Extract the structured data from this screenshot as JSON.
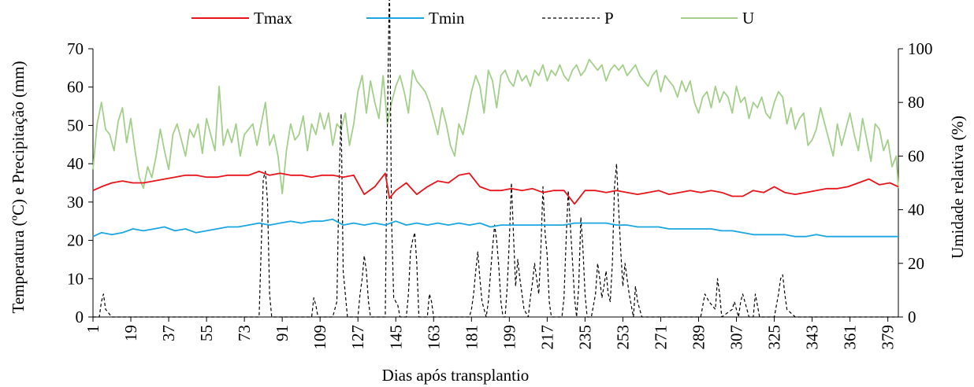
{
  "chart_data": {
    "type": "line",
    "xlabel": "Dias após transplantio",
    "ylabel_left": "Temperatura (ºC) e Precipitação (mm)",
    "ylabel_right": "Umidade relativa (%)",
    "x_tick_labels": [
      "1",
      "19",
      "37",
      "55",
      "73",
      "91",
      "109",
      "127",
      "145",
      "163",
      "181",
      "199",
      "217",
      "235",
      "253",
      "271",
      "289",
      "307",
      "325",
      "343",
      "361",
      "379"
    ],
    "y_left_ticks": [
      "0",
      "10",
      "20",
      "30",
      "40",
      "50",
      "60",
      "70"
    ],
    "y_right_ticks": [
      "0",
      "20",
      "40",
      "60",
      "80",
      "100"
    ],
    "ylim_left": [
      0,
      70
    ],
    "ylim_right": [
      0,
      100
    ],
    "xlim": [
      1,
      384
    ],
    "legend_position": "top",
    "series": [
      {
        "name": "Tmax",
        "axis": "left",
        "color": "#e8141b",
        "dash": "solid",
        "x": [
          1,
          5,
          10,
          15,
          20,
          25,
          30,
          35,
          40,
          45,
          50,
          55,
          60,
          65,
          70,
          75,
          80,
          85,
          90,
          95,
          100,
          105,
          110,
          115,
          120,
          125,
          130,
          135,
          140,
          142,
          145,
          150,
          155,
          160,
          165,
          170,
          175,
          180,
          185,
          190,
          195,
          200,
          205,
          210,
          215,
          220,
          225,
          230,
          235,
          240,
          245,
          250,
          255,
          260,
          265,
          270,
          275,
          280,
          285,
          290,
          295,
          300,
          305,
          310,
          315,
          320,
          325,
          330,
          335,
          340,
          345,
          350,
          355,
          360,
          365,
          370,
          375,
          380,
          384
        ],
        "values": [
          33,
          34,
          35,
          35.5,
          35,
          35,
          35.5,
          36,
          36.5,
          37,
          37,
          36.5,
          36.5,
          37,
          37,
          37,
          38,
          37,
          37.5,
          37,
          37,
          36.5,
          37,
          37,
          36.5,
          37,
          32,
          34,
          37.5,
          31,
          33,
          35,
          32,
          34,
          35.5,
          35,
          37,
          37.5,
          34,
          33,
          33,
          33.5,
          33,
          33.5,
          32.5,
          33,
          33,
          29.5,
          33,
          33,
          32.5,
          33,
          32.5,
          32,
          32.5,
          33,
          32,
          32.5,
          33,
          32.5,
          33,
          32.5,
          31.5,
          31.5,
          33,
          32.5,
          34,
          32.5,
          32,
          32.5,
          33,
          33.5,
          33.5,
          34,
          35,
          36,
          34.5,
          35,
          34
        ]
      },
      {
        "name": "Tmin",
        "axis": "left",
        "color": "#1aa6e0",
        "dash": "solid",
        "x": [
          1,
          5,
          10,
          15,
          20,
          25,
          30,
          35,
          40,
          45,
          50,
          55,
          60,
          65,
          70,
          75,
          80,
          85,
          90,
          95,
          100,
          105,
          110,
          115,
          120,
          125,
          130,
          135,
          140,
          145,
          150,
          155,
          160,
          165,
          170,
          175,
          180,
          185,
          190,
          195,
          200,
          205,
          210,
          215,
          220,
          225,
          230,
          235,
          240,
          245,
          250,
          255,
          260,
          265,
          270,
          275,
          280,
          285,
          290,
          295,
          300,
          305,
          310,
          315,
          320,
          325,
          330,
          335,
          340,
          345,
          350,
          355,
          360,
          365,
          370,
          375,
          380,
          384
        ],
        "values": [
          21,
          22,
          21.5,
          22,
          23,
          22.5,
          23,
          23.5,
          22.5,
          23,
          22,
          22.5,
          23,
          23.5,
          23.5,
          24,
          24.5,
          24,
          24.5,
          25,
          24.5,
          25,
          25,
          25.5,
          24,
          24.5,
          24,
          24.5,
          24,
          25,
          24,
          24.5,
          24,
          24.5,
          24,
          24.5,
          24,
          24.5,
          23.5,
          24,
          24,
          24,
          24,
          24,
          24,
          24,
          24.5,
          24.5,
          24.5,
          24.5,
          24,
          24,
          23.5,
          23.5,
          23.5,
          23,
          23,
          23,
          23,
          23,
          22.5,
          22.5,
          22,
          21.5,
          21.5,
          21.5,
          21.5,
          21,
          21,
          21.5,
          21,
          21,
          21,
          21,
          21,
          21,
          21,
          21
        ]
      },
      {
        "name": "P",
        "axis": "left",
        "color": "#000000",
        "dash": "dashed",
        "x": [
          1,
          4,
          5,
          6,
          7,
          10,
          80,
          82,
          83,
          84,
          85,
          86,
          105,
          106,
          107,
          108,
          115,
          117,
          118,
          119,
          120,
          122,
          127,
          128,
          129,
          130,
          131,
          132,
          133,
          140,
          141,
          142,
          143,
          144,
          146,
          147,
          150,
          151,
          152,
          153,
          154,
          155,
          156,
          160,
          161,
          162,
          163,
          164,
          170,
          180,
          181,
          182,
          183,
          184,
          185,
          186,
          188,
          189,
          190,
          191,
          192,
          193,
          194,
          195,
          196,
          197,
          198,
          199,
          200,
          201,
          202,
          203,
          204,
          205,
          206,
          208,
          209,
          210,
          211,
          212,
          213,
          214,
          215,
          216,
          217,
          218,
          219,
          220,
          222,
          224,
          225,
          226,
          227,
          228,
          229,
          230,
          231,
          232,
          233,
          234,
          235,
          236,
          237,
          238,
          240,
          241,
          242,
          243,
          244,
          245,
          246,
          247,
          248,
          249,
          250,
          251,
          252,
          253,
          254,
          255,
          256,
          257,
          258,
          259,
          260,
          262,
          264,
          266,
          268,
          270,
          272,
          274,
          276,
          280,
          282,
          284,
          290,
          292,
          294,
          297,
          298,
          299,
          300,
          305,
          306,
          307,
          308,
          309,
          310,
          312,
          313,
          314,
          315,
          316,
          318,
          320,
          325,
          327,
          328,
          329,
          330,
          331,
          335,
          340,
          384
        ],
        "values": [
          0,
          0,
          4,
          6,
          2,
          0,
          0,
          36,
          38,
          30,
          6,
          0,
          0,
          5,
          3,
          0,
          0,
          4,
          35,
          53,
          12,
          0,
          0,
          6,
          10,
          16,
          12,
          4,
          0,
          0,
          50,
          88,
          25,
          5,
          3,
          0,
          0,
          6,
          17,
          20,
          22,
          14,
          0,
          0,
          6,
          4,
          0,
          0,
          0,
          0,
          2,
          6,
          12,
          17,
          10,
          4,
          0,
          4,
          11,
          18,
          24,
          20,
          13,
          4,
          0,
          0,
          8,
          20,
          35,
          21,
          8,
          15,
          10,
          6,
          2,
          0,
          5,
          9,
          14,
          10,
          6,
          18,
          34,
          22,
          16,
          4,
          0,
          0,
          0,
          0,
          5,
          20,
          33,
          24,
          15,
          5,
          0,
          8,
          26,
          18,
          6,
          0,
          0,
          0,
          6,
          14,
          10,
          5,
          8,
          12,
          6,
          4,
          14,
          34,
          40,
          28,
          17,
          8,
          14,
          10,
          6,
          3,
          0,
          8,
          4,
          0,
          0,
          0,
          0,
          0,
          0,
          0,
          0,
          0,
          0,
          0,
          0,
          6,
          4,
          2,
          10,
          6,
          0,
          2,
          4,
          2,
          0,
          4,
          6,
          2,
          0,
          0,
          0,
          6,
          0,
          0,
          0,
          6,
          10,
          11,
          6,
          2,
          0,
          0,
          0
        ]
      },
      {
        "name": "U",
        "axis": "right",
        "color": "#a3cf8a",
        "dash": "solid",
        "x": [
          1,
          3,
          5,
          7,
          9,
          11,
          13,
          15,
          17,
          19,
          21,
          23,
          25,
          27,
          29,
          31,
          33,
          35,
          37,
          39,
          41,
          43,
          45,
          47,
          49,
          51,
          53,
          55,
          57,
          59,
          61,
          63,
          65,
          67,
          69,
          71,
          73,
          75,
          77,
          79,
          81,
          83,
          85,
          87,
          89,
          91,
          93,
          95,
          97,
          99,
          101,
          103,
          105,
          107,
          109,
          111,
          113,
          115,
          117,
          119,
          121,
          123,
          125,
          127,
          129,
          131,
          133,
          135,
          137,
          139,
          141,
          143,
          145,
          147,
          149,
          151,
          153,
          155,
          157,
          159,
          161,
          163,
          165,
          167,
          169,
          171,
          173,
          175,
          177,
          179,
          181,
          183,
          185,
          187,
          189,
          191,
          193,
          195,
          197,
          199,
          201,
          203,
          205,
          207,
          209,
          211,
          213,
          215,
          217,
          219,
          221,
          223,
          225,
          227,
          229,
          231,
          233,
          235,
          237,
          239,
          241,
          243,
          245,
          247,
          249,
          251,
          253,
          255,
          257,
          259,
          261,
          263,
          265,
          267,
          269,
          271,
          273,
          275,
          277,
          279,
          281,
          283,
          285,
          287,
          289,
          291,
          293,
          295,
          297,
          299,
          301,
          303,
          305,
          307,
          309,
          311,
          313,
          315,
          317,
          319,
          321,
          323,
          325,
          327,
          329,
          331,
          333,
          335,
          337,
          339,
          341,
          343,
          345,
          347,
          349,
          351,
          353,
          355,
          357,
          359,
          361,
          363,
          365,
          367,
          369,
          371,
          373,
          375,
          377,
          379,
          381,
          383,
          384
        ],
        "values": [
          55,
          72,
          80,
          70,
          68,
          62,
          73,
          78,
          65,
          74,
          62,
          52,
          48,
          56,
          52,
          60,
          70,
          62,
          55,
          68,
          72,
          66,
          60,
          70,
          67,
          72,
          61,
          74,
          68,
          62,
          86,
          64,
          70,
          65,
          72,
          60,
          68,
          70,
          72,
          64,
          72,
          80,
          64,
          68,
          60,
          46,
          62,
          72,
          66,
          68,
          75,
          62,
          72,
          68,
          76,
          70,
          76,
          64,
          72,
          70,
          76,
          64,
          72,
          84,
          90,
          76,
          88,
          80,
          74,
          90,
          72,
          80,
          86,
          90,
          84,
          76,
          92,
          88,
          86,
          84,
          80,
          74,
          68,
          78,
          72,
          64,
          60,
          72,
          68,
          76,
          84,
          90,
          86,
          76,
          92,
          88,
          78,
          90,
          92,
          88,
          86,
          92,
          88,
          90,
          86,
          92,
          90,
          94,
          88,
          92,
          90,
          94,
          90,
          88,
          92,
          94,
          90,
          92,
          96,
          94,
          92,
          94,
          88,
          92,
          94,
          92,
          94,
          90,
          92,
          94,
          90,
          88,
          86,
          90,
          92,
          84,
          90,
          88,
          86,
          82,
          88,
          84,
          88,
          80,
          76,
          82,
          84,
          78,
          86,
          80,
          84,
          82,
          76,
          86,
          80,
          82,
          74,
          80,
          78,
          82,
          76,
          74,
          80,
          84,
          82,
          72,
          78,
          70,
          74,
          76,
          64,
          66,
          70,
          78,
          72,
          66,
          60,
          72,
          64,
          70,
          76,
          68,
          62,
          74,
          66,
          58,
          72,
          70,
          62,
          66,
          56,
          60,
          48
        ]
      }
    ]
  }
}
